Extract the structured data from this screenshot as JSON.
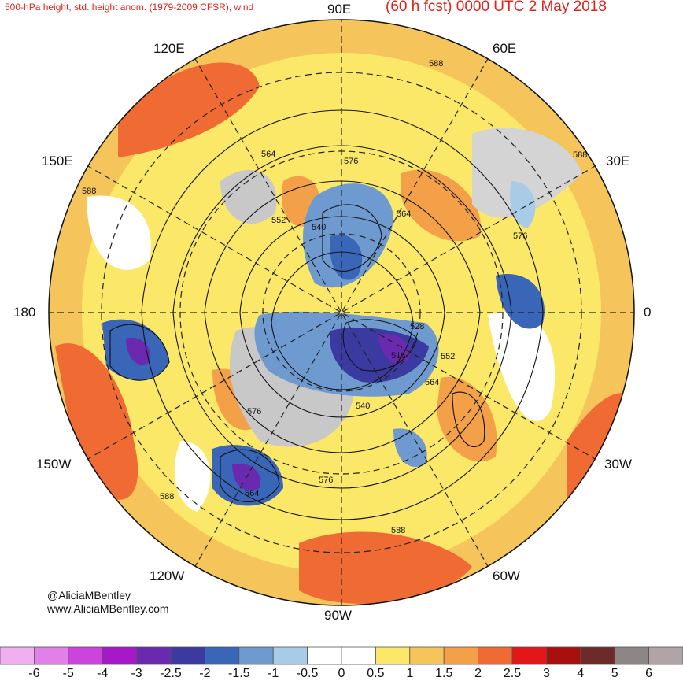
{
  "header": {
    "title_left": "500-hPa height, std. height anom. (1979-2009 CFSR), wind",
    "title_right": "(60 h fcst) 0000 UTC 2 May 2018"
  },
  "lon_labels": {
    "90E": "90E",
    "60E": "60E",
    "120E": "120E",
    "150E": "150E",
    "30E": "30E",
    "180": "180",
    "0": "0",
    "150W": "150W",
    "30W": "30W",
    "120W": "120W",
    "60W": "60W",
    "90W": "90W"
  },
  "contour_labels": [
    "588",
    "564",
    "576",
    "552",
    "540",
    "564",
    "576",
    "588",
    "528",
    "516",
    "552",
    "564",
    "540",
    "576",
    "564",
    "576",
    "588",
    "588",
    "588"
  ],
  "credits": {
    "twitter": "@AliciaMBentley",
    "website": "www.AliciaMBentley.com"
  },
  "legend": {
    "labels": [
      "-6",
      "-5",
      "-4",
      "-3",
      "-2.5",
      "-2",
      "-1.5",
      "-1",
      "-0.5",
      "0",
      "0.5",
      "1",
      "1.5",
      "2",
      "2.5",
      "3",
      "4",
      "5",
      "6"
    ],
    "colors": [
      "#f0b0f0",
      "#e080e8",
      "#cc44dd",
      "#a618c8",
      "#6a2ab0",
      "#3a3aa0",
      "#3a66b8",
      "#6e9ad0",
      "#a8cce8",
      "#ffffff",
      "#ffffff",
      "#fbe868",
      "#f5c45a",
      "#f3a048",
      "#f06a34",
      "#e21818",
      "#a81010",
      "#6e2a28",
      "#8c8686",
      "#b0a4a4"
    ]
  },
  "colors": {
    "land": "#d4d4d4",
    "positive": "#f5c45a",
    "negative": "#6e9ad0"
  }
}
